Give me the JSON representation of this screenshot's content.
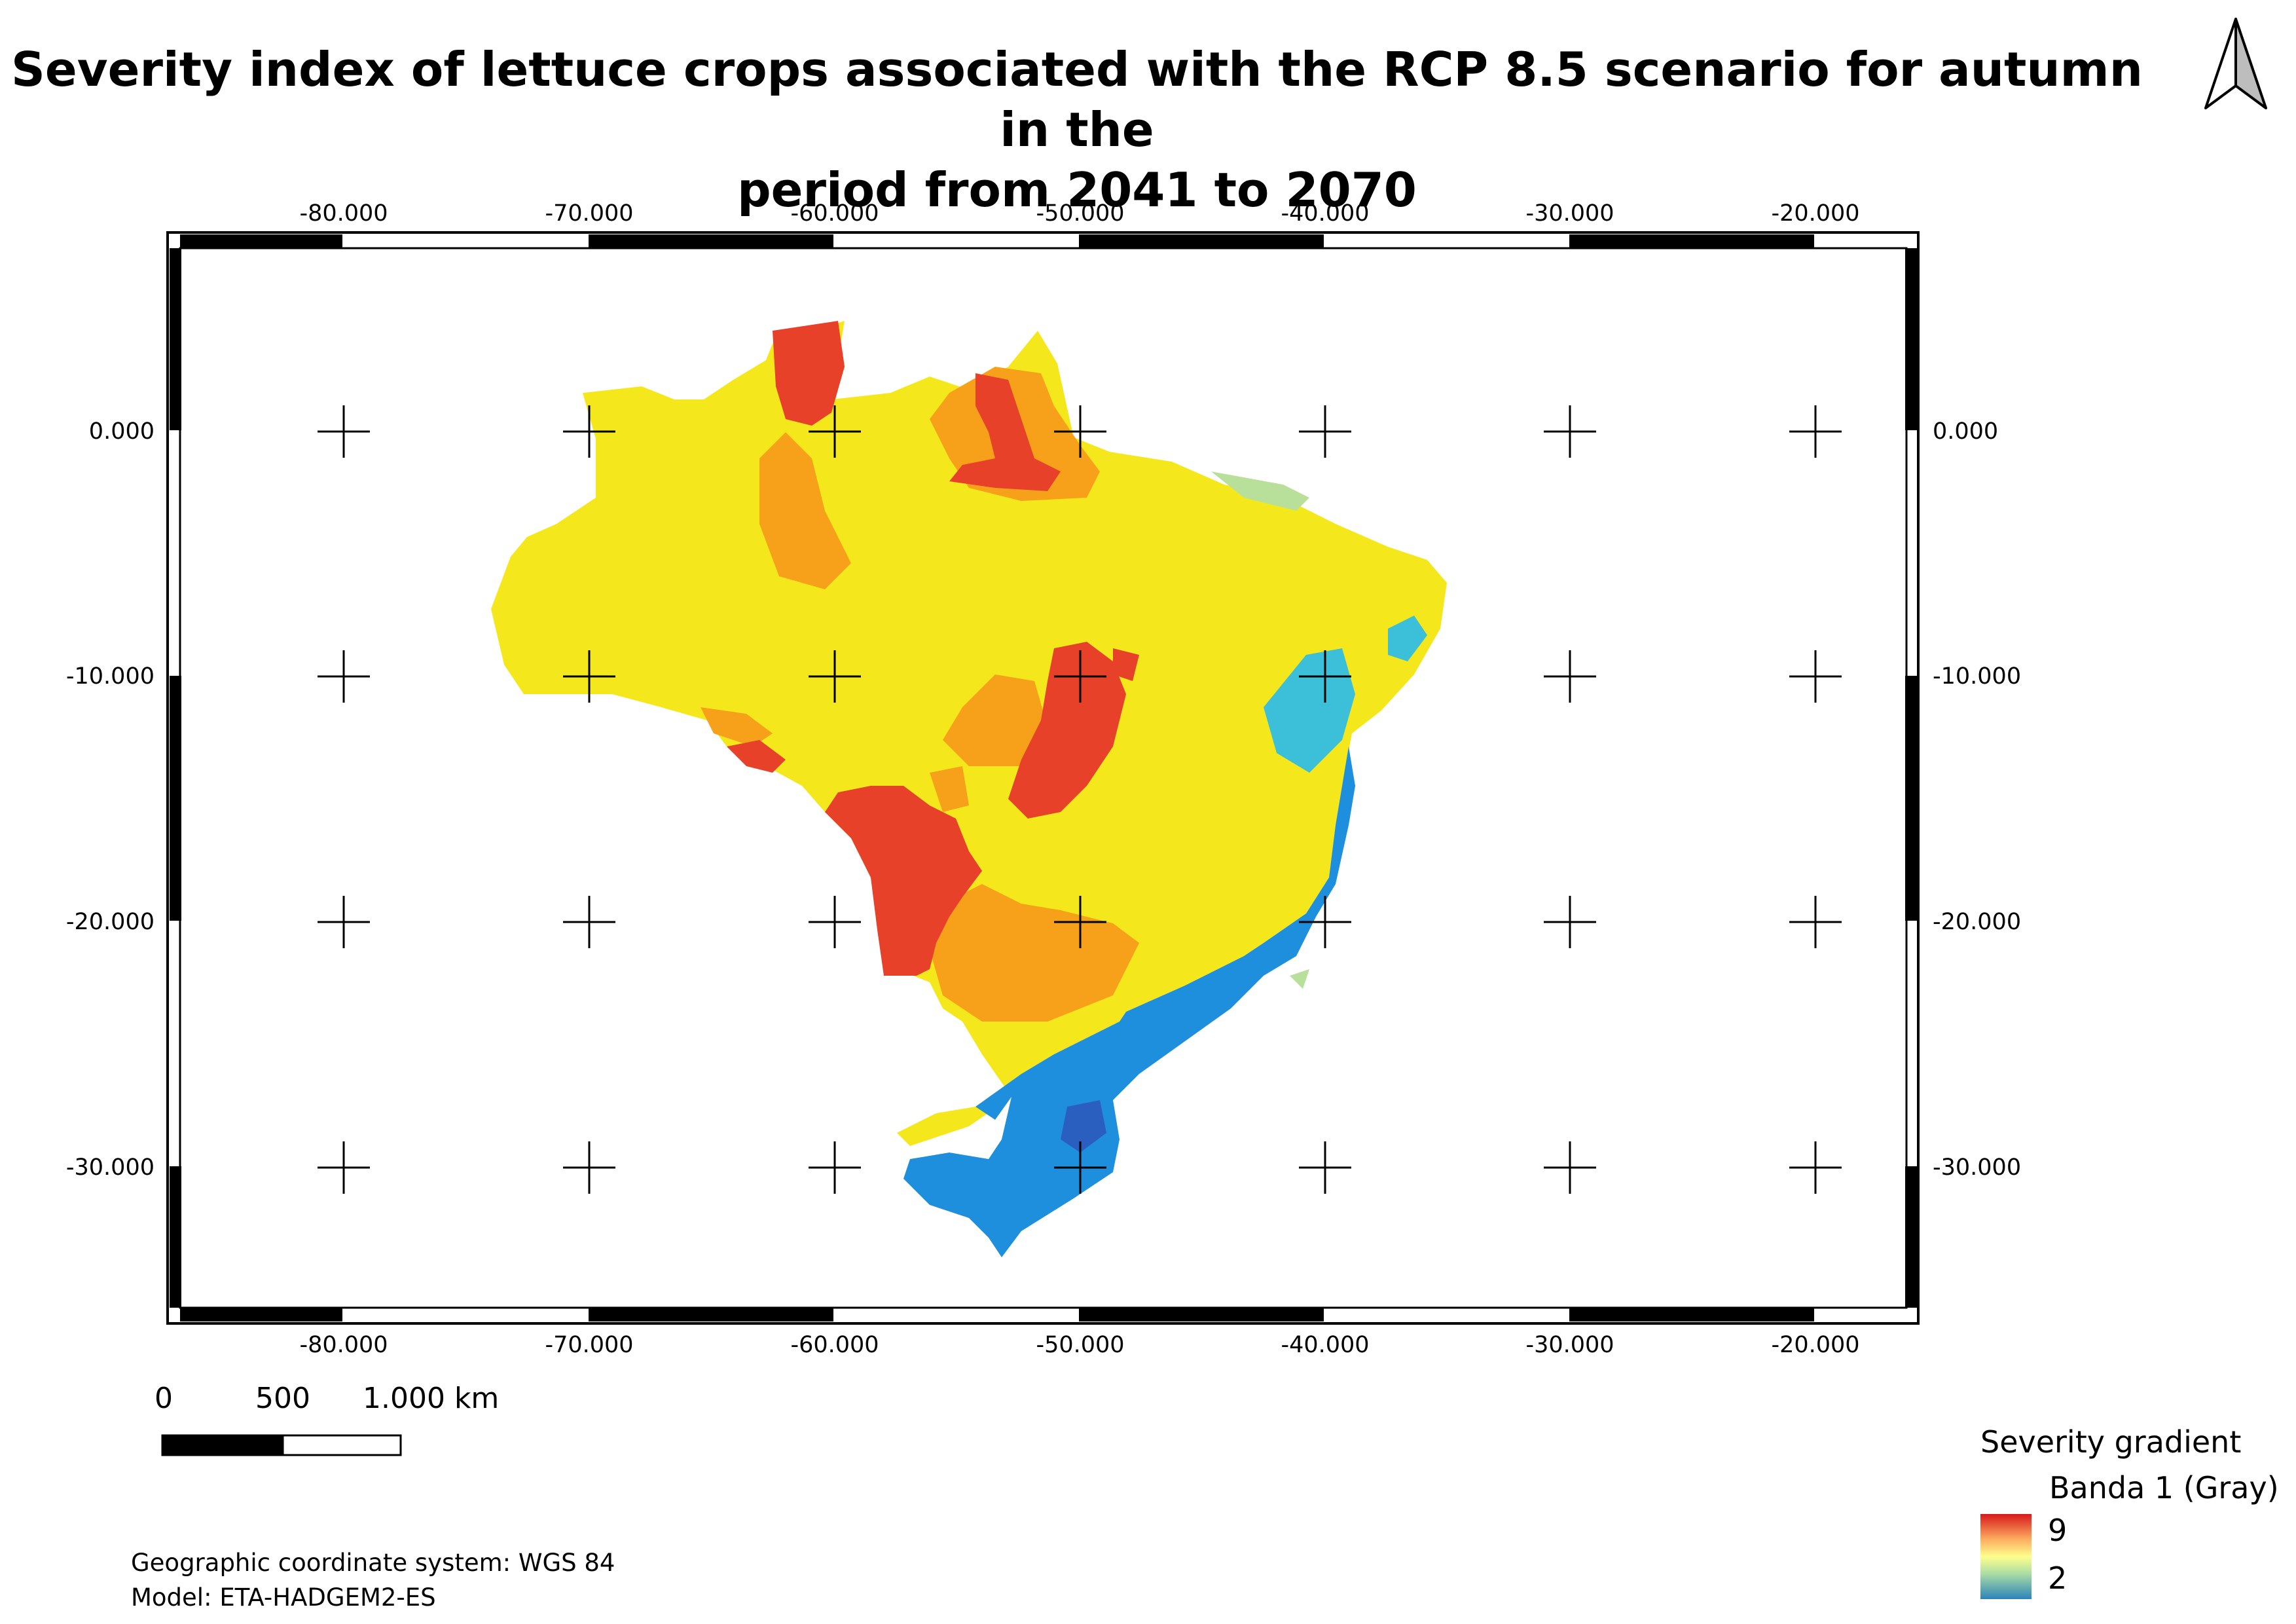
{
  "title": {
    "line1": "Severity index of lettuce crops associated with the RCP 8.5 scenario for autumn in the",
    "line2": "period from 2041 to 2070"
  },
  "north_arrow": {
    "icon": "north-arrow-icon"
  },
  "map": {
    "region": "Brazil",
    "colors": {
      "severity_9": "#e8412a",
      "orange": "#f7a11a",
      "yellow": "#f4e81c",
      "light_green": "#b8e09a",
      "cyan": "#3cbfd8",
      "blue": "#1e8fdc",
      "dark_blue": "#2a5fc0"
    }
  },
  "axes": {
    "longitude_ticks": [
      "-80.000",
      "-70.000",
      "-60.000",
      "-50.000",
      "-40.000",
      "-30.000",
      "-20.000"
    ],
    "latitude_ticks": [
      "0.000",
      "-10.000",
      "-20.000",
      "-30.000"
    ]
  },
  "scale_bar": {
    "labels": [
      "0",
      "500",
      "1.000 km"
    ]
  },
  "legend": {
    "title": "Severity gradient",
    "band": "Banda 1 (Gray)",
    "max": "9",
    "min": "2",
    "ramp_top_color": "#d7191c",
    "ramp_bottom_color": "#2b83ba"
  },
  "notes": {
    "crs": "Geographic coordinate system: WGS 84",
    "model": "Model: ETA-HADGEM2-ES"
  }
}
